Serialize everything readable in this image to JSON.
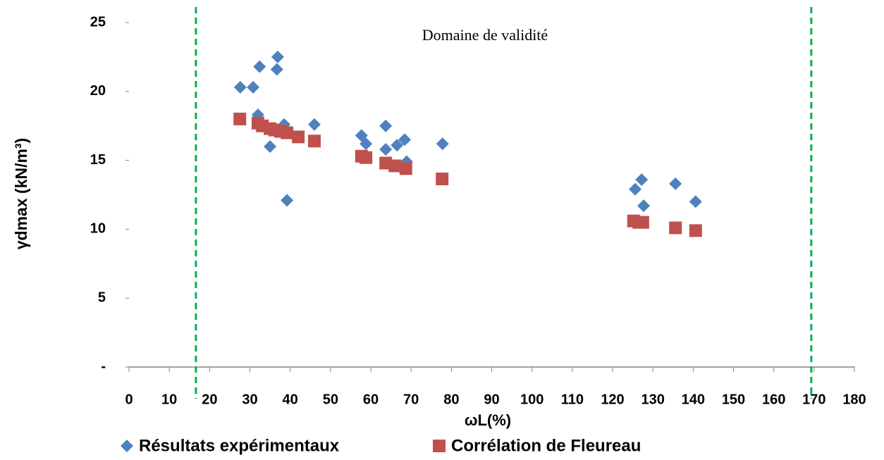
{
  "chart_data": {
    "type": "scatter",
    "annotation": "Domaine de validité",
    "xlabel": "ωL(%)",
    "ylabel": "γdmax (kN/m³)",
    "xlim": [
      0,
      180
    ],
    "xticks": [
      0,
      10,
      20,
      30,
      40,
      50,
      60,
      70,
      80,
      90,
      100,
      110,
      120,
      130,
      140,
      150,
      160,
      170,
      180
    ],
    "ylim": [
      0,
      25
    ],
    "yticks": [
      {
        "value": 0,
        "label": "-"
      },
      5,
      10,
      15,
      20,
      25
    ],
    "reference_lines": {
      "x": [
        16.6,
        169.3
      ],
      "color": "#00b050",
      "style": "dashed"
    },
    "series": [
      {
        "name": "Résultats expérimentaux",
        "color": "#4f81bd",
        "marker": "diamond",
        "x": [
          27.6,
          32.4,
          36.9,
          36.7,
          30.8,
          32.0,
          38.5,
          35.0,
          39.2,
          46.0,
          57.7,
          58.8,
          63.7,
          63.7,
          66.5,
          68.4,
          68.9,
          77.8,
          125.6,
          127.2,
          127.7,
          135.6,
          140.6
        ],
        "values": [
          20.3,
          21.8,
          22.5,
          21.6,
          20.3,
          18.3,
          17.6,
          16.0,
          12.1,
          17.6,
          16.8,
          16.2,
          17.5,
          15.8,
          16.1,
          16.5,
          14.9,
          16.2,
          12.9,
          13.6,
          11.7,
          13.3,
          12.0
        ]
      },
      {
        "name": "Corrélation de Fleureau",
        "color": "#c0504d",
        "marker": "square",
        "x": [
          27.5,
          32.0,
          33.1,
          35.0,
          36.2,
          37.6,
          39.2,
          42.0,
          46.0,
          57.7,
          58.8,
          63.7,
          66.0,
          68.7,
          77.7,
          125.2,
          126.5,
          127.5,
          135.6,
          140.6
        ],
        "values": [
          18.0,
          17.7,
          17.5,
          17.3,
          17.2,
          17.1,
          17.0,
          16.7,
          16.4,
          15.3,
          15.2,
          14.8,
          14.6,
          14.4,
          13.65,
          10.6,
          10.5,
          10.5,
          10.1,
          9.9
        ]
      }
    ]
  }
}
